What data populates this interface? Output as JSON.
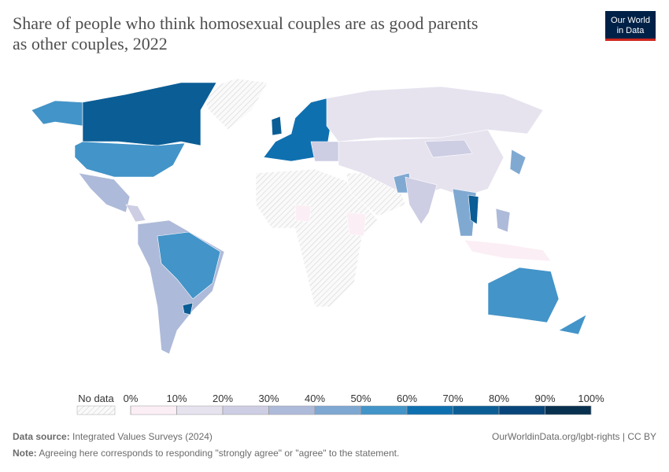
{
  "header": {
    "title_lines": [
      "Share of people who think homosexual couples are as good parents",
      "as other couples, 2022"
    ],
    "logo": [
      "Our World",
      "in Data"
    ]
  },
  "legend": {
    "no_data": "No data",
    "ticks": [
      {
        "value": 0,
        "label": "0%"
      },
      {
        "value": 10,
        "label": "10%"
      },
      {
        "value": 20,
        "label": "20%"
      },
      {
        "value": 30,
        "label": "30%"
      },
      {
        "value": 40,
        "label": "40%"
      },
      {
        "value": 50,
        "label": "50%"
      },
      {
        "value": 60,
        "label": "60%"
      },
      {
        "value": 70,
        "label": "70%"
      },
      {
        "value": 80,
        "label": "80%"
      },
      {
        "value": 90,
        "label": "90%"
      },
      {
        "value": 100,
        "label": "100%"
      }
    ],
    "colors": [
      "#fbeef4",
      "#e6e3ef",
      "#cdcde3",
      "#aebad9",
      "#7ea8d1",
      "#4394c8",
      "#0f70b0",
      "#0b5d95",
      "#08457a",
      "#08304f"
    ]
  },
  "footer": {
    "source_label": "Data source:",
    "source": "Integrated Values Surveys (2024)",
    "url": "OurWorldinData.org/lgbt-rights | CC BY",
    "note_label": "Note:",
    "note": "Agreeing here corresponds to responding \"strongly agree\" or \"agree\" to the statement."
  }
}
